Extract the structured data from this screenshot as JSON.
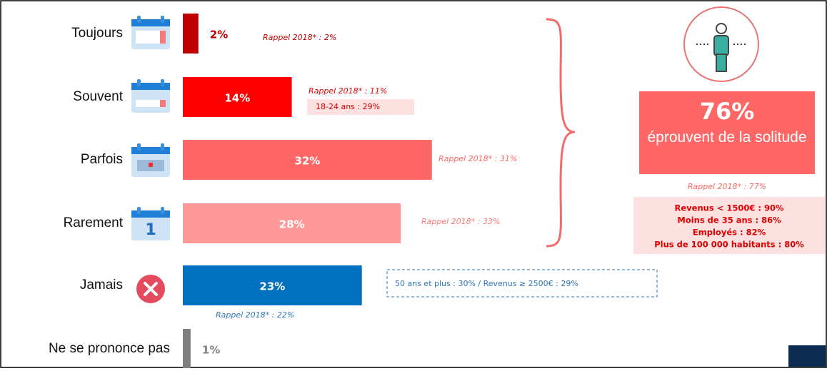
{
  "chart_data": {
    "type": "hbar",
    "categories": [
      "Toujours",
      "Souvent",
      "Parfois",
      "Rarement",
      "Jamais",
      "Ne se prononce pas"
    ],
    "values": [
      2,
      14,
      32,
      28,
      23,
      1
    ],
    "value_labels": [
      "2%",
      "14%",
      "32%",
      "28%",
      "23%",
      "1%"
    ],
    "colors": [
      "#c00000",
      "#ff0000",
      "#ff6666",
      "#ff9999",
      "#0070c0",
      "#808080"
    ],
    "notes": [
      "Rappel 2018* : 2%",
      "Rappel 2018* : 11%",
      "18-24 ans : 29%",
      "Rappel 2018* : 31%",
      "Rappel 2018* : 33%",
      "50 ans et plus : 30% / Revenus ≥ 2500€ : 29%",
      "Rappel 2018* : 22%"
    ],
    "summary": {
      "value_text": "76%",
      "text": "éprouvent de la solitude",
      "recall": "Rappel 2018* : 77%",
      "details": [
        "Revenus < 1500€ : 90%",
        "Moins de 35 ans : 86%",
        "Employés : 82%",
        "Plus de 100 000 habitants : 80%"
      ]
    }
  }
}
